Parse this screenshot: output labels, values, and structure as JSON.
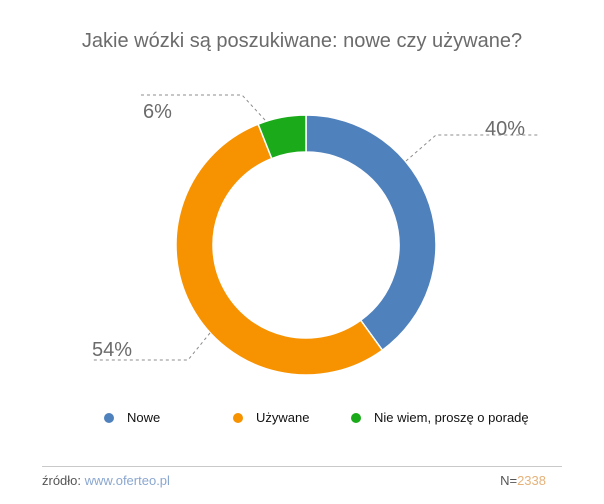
{
  "title": "Jakie wózki są poszukiwane: nowe czy używane?",
  "chart_data": {
    "type": "pie",
    "variant": "donut",
    "title": "Jakie wózki są poszukiwane: nowe czy używane?",
    "categories": [
      "Nowe",
      "Używane",
      "Nie wiem, proszę o poradę"
    ],
    "values": [
      40,
      54,
      6
    ],
    "labels": [
      "40%",
      "54%",
      "6%"
    ],
    "colors": [
      "#4f81bd",
      "#f79200",
      "#1aaa1a"
    ],
    "legend_position": "bottom"
  },
  "footer": {
    "source_label": "źródło:",
    "source_link": "www.oferteo.pl",
    "n_label": "N=",
    "n_value": "2338"
  }
}
